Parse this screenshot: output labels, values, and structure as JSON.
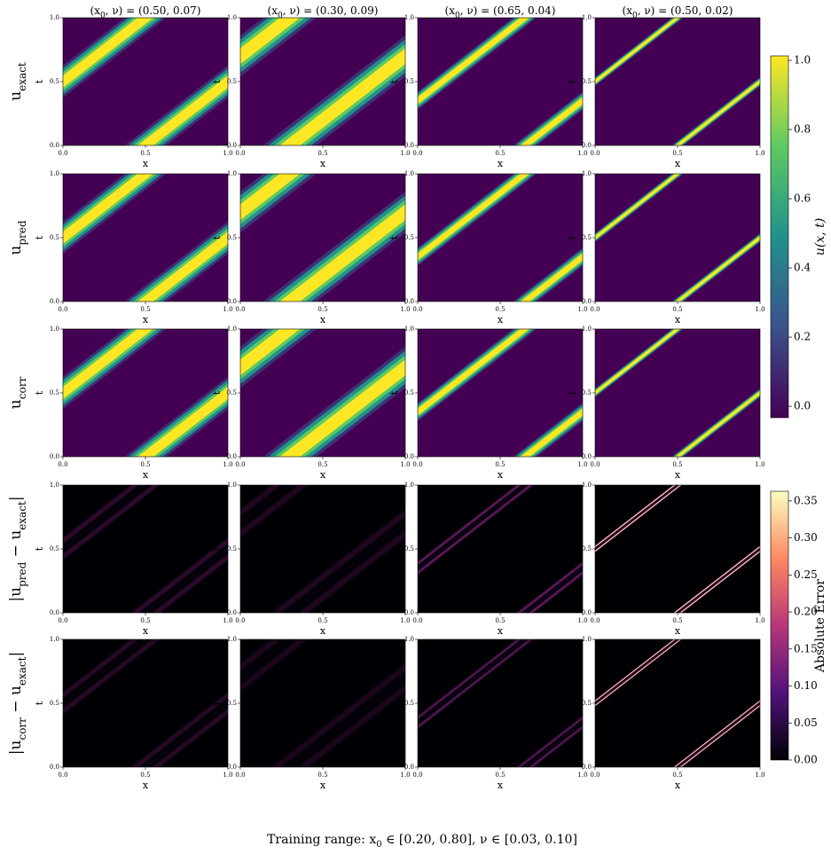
{
  "chart_data": {
    "type": "heatmap-grid",
    "columns": [
      {
        "title_parts": [
          "(x",
          "0",
          ", ν) = (0.50, 0.07)"
        ],
        "x0": 0.5,
        "nu": 0.07
      },
      {
        "title_parts": [
          "(x",
          "0",
          ", ν) = (0.30, 0.09)"
        ],
        "x0": 0.3,
        "nu": 0.09
      },
      {
        "title_parts": [
          "(x",
          "0",
          ", ν) = (0.65, 0.04)"
        ],
        "x0": 0.65,
        "nu": 0.04
      },
      {
        "title_parts": [
          "(x",
          "0",
          ", ν) = (0.50, 0.02)"
        ],
        "x0": 0.5,
        "nu": 0.02
      }
    ],
    "rows": [
      {
        "label_parts": [
          "u",
          "exact"
        ],
        "cmap": "viridis"
      },
      {
        "label_parts": [
          "u",
          "pred"
        ],
        "cmap": "viridis"
      },
      {
        "label_parts": [
          "u",
          "corr"
        ],
        "cmap": "viridis"
      },
      {
        "label_parts": [
          "|u",
          "pred",
          " − u",
          "exact",
          "|"
        ],
        "cmap": "magma"
      },
      {
        "label_parts": [
          "|u",
          "corr",
          " − u",
          "exact",
          "|"
        ],
        "cmap": "magma"
      }
    ],
    "xlabel": "x",
    "ylabel": "t",
    "xlim": [
      0,
      1
    ],
    "ylim": [
      0,
      1
    ],
    "xticks": [
      {
        "value": 0,
        "label": "0.0"
      },
      {
        "value": 0.5,
        "label": "0.5"
      },
      {
        "value": 1,
        "label": "1.0"
      }
    ],
    "yticks": [
      {
        "value": 0,
        "label": "0.0"
      },
      {
        "value": 0.5,
        "label": "0.5"
      },
      {
        "value": 1,
        "label": "1.0"
      }
    ],
    "colorbars": [
      {
        "label": "u(x, t)",
        "cmap": "viridis",
        "ylim": [
          -0.033,
          1.013
        ],
        "yticks": [
          {
            "value": 0,
            "label": "0.0"
          },
          {
            "value": 0.2,
            "label": "0.2"
          },
          {
            "value": 0.4,
            "label": "0.4"
          },
          {
            "value": 0.6,
            "label": "0.6"
          },
          {
            "value": 0.8,
            "label": "0.8"
          },
          {
            "value": 1,
            "label": "1.0"
          }
        ]
      },
      {
        "label": "Absolute Error",
        "cmap": "magma",
        "ylim": [
          0,
          0.363
        ],
        "yticks": [
          {
            "value": 0,
            "label": "0.00"
          },
          {
            "value": 0.05,
            "label": "0.05"
          },
          {
            "value": 0.1,
            "label": "0.10"
          },
          {
            "value": 0.15,
            "label": "0.15"
          },
          {
            "value": 0.2,
            "label": "0.20"
          },
          {
            "value": 0.25,
            "label": "0.25"
          },
          {
            "value": 0.3,
            "label": "0.30"
          },
          {
            "value": 0.35,
            "label": "0.35"
          }
        ]
      }
    ],
    "footer_parts": [
      "Training range: x",
      "0",
      " ∈ [0.20, 0.80],  ν ∈ [0.03, 0.10]"
    ]
  }
}
